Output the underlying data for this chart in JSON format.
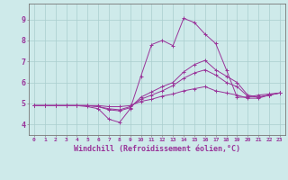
{
  "title": "",
  "xlabel": "Windchill (Refroidissement éolien,°C)",
  "ylabel": "",
  "xlim": [
    -0.5,
    23.5
  ],
  "ylim": [
    3.5,
    9.75
  ],
  "xticks": [
    0,
    1,
    2,
    3,
    4,
    5,
    6,
    7,
    8,
    9,
    10,
    11,
    12,
    13,
    14,
    15,
    16,
    17,
    18,
    19,
    20,
    21,
    22,
    23
  ],
  "yticks": [
    4,
    5,
    6,
    7,
    8,
    9
  ],
  "bg_color": "#ceeaea",
  "grid_color": "#aacece",
  "line_color": "#993399",
  "lines": [
    [
      4.9,
      4.9,
      4.9,
      4.9,
      4.9,
      4.85,
      4.75,
      4.25,
      4.1,
      4.75,
      6.3,
      7.8,
      8.0,
      7.75,
      9.05,
      8.85,
      8.3,
      7.85,
      6.6,
      5.3,
      5.3,
      5.4,
      5.45,
      5.5
    ],
    [
      4.9,
      4.9,
      4.9,
      4.9,
      4.9,
      4.9,
      4.85,
      4.7,
      4.65,
      4.8,
      5.3,
      5.55,
      5.8,
      6.0,
      6.5,
      6.85,
      7.05,
      6.6,
      6.3,
      6.0,
      5.4,
      5.3,
      5.4,
      5.5
    ],
    [
      4.9,
      4.9,
      4.9,
      4.9,
      4.9,
      4.9,
      4.85,
      4.75,
      4.7,
      4.85,
      5.2,
      5.4,
      5.6,
      5.85,
      6.2,
      6.45,
      6.6,
      6.35,
      6.0,
      5.8,
      5.35,
      5.3,
      5.4,
      5.5
    ],
    [
      4.9,
      4.9,
      4.9,
      4.9,
      4.9,
      4.9,
      4.9,
      4.85,
      4.85,
      4.9,
      5.1,
      5.2,
      5.35,
      5.45,
      5.6,
      5.7,
      5.8,
      5.6,
      5.5,
      5.4,
      5.25,
      5.25,
      5.4,
      5.5
    ]
  ]
}
